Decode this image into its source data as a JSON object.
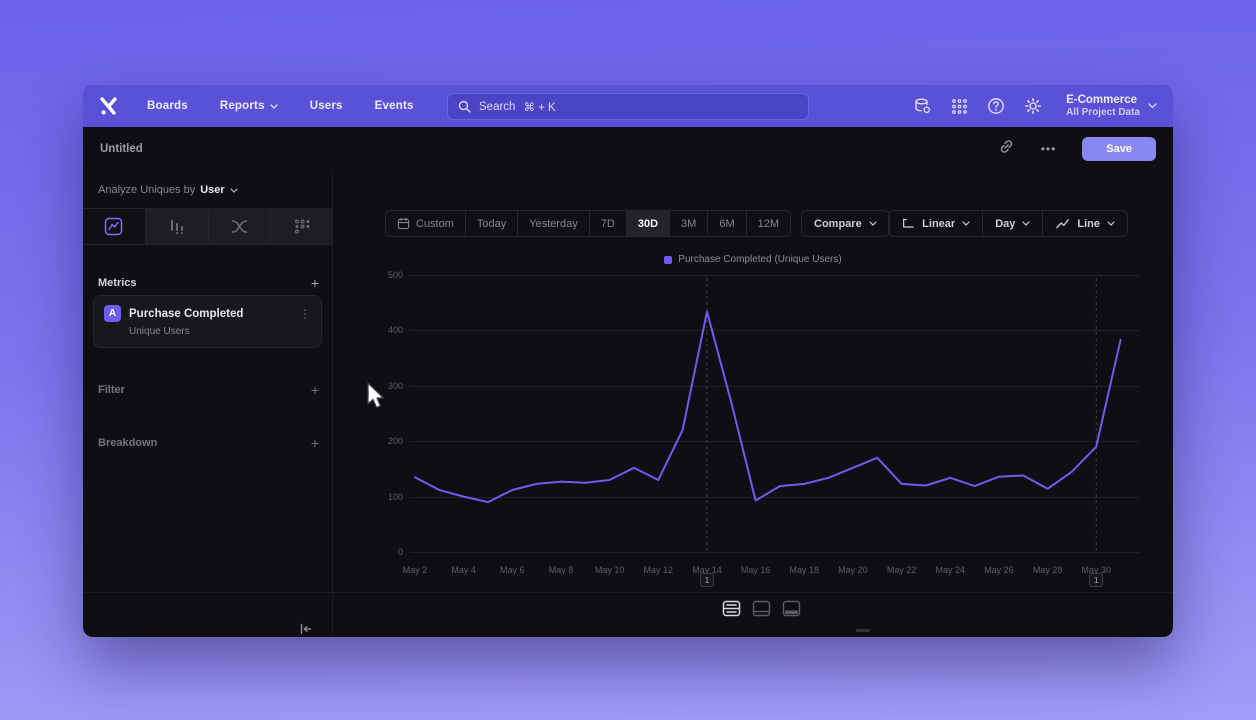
{
  "nav": {
    "items": [
      {
        "label": "Boards"
      },
      {
        "label": "Reports"
      },
      {
        "label": "Users"
      },
      {
        "label": "Events"
      }
    ],
    "search": {
      "label": "Search",
      "shortcut": "⌘ + K"
    },
    "project": {
      "name": "E-Commerce",
      "scope": "All Project Data"
    }
  },
  "titlebar": {
    "title": "Untitled",
    "more_label": "•••",
    "save_label": "Save"
  },
  "sidebar": {
    "analyze": {
      "prefix": "Analyze Uniques by",
      "value": "User"
    },
    "metrics": {
      "title": "Metrics",
      "add_label": "+"
    },
    "filter": {
      "title": "Filter",
      "add_label": "+"
    },
    "breakdown": {
      "title": "Breakdown",
      "add_label": "+"
    },
    "metric_card": {
      "badge": "A",
      "name": "Purchase Completed",
      "subtitle": "Unique Users",
      "menu": "⋮"
    }
  },
  "toolbar": {
    "ranges": [
      "Custom",
      "Today",
      "Yesterday",
      "7D",
      "30D",
      "3M",
      "6M",
      "12M"
    ],
    "active_range": "30D",
    "compare_label": "Compare",
    "scale_label": "Linear",
    "granularity_label": "Day",
    "chart_type_label": "Line"
  },
  "legend": {
    "label": "Purchase Completed (Unique Users)",
    "color": "#6f5bf0"
  },
  "chart_data": {
    "type": "line",
    "title": "",
    "categories": [
      "May 2",
      "May 3",
      "May 4",
      "May 5",
      "May 6",
      "May 7",
      "May 8",
      "May 9",
      "May 10",
      "May 11",
      "May 12",
      "May 13",
      "May 14",
      "May 15",
      "May 16",
      "May 17",
      "May 18",
      "May 19",
      "May 20",
      "May 21",
      "May 22",
      "May 23",
      "May 24",
      "May 25",
      "May 26",
      "May 27",
      "May 28",
      "May 29",
      "May 30",
      "May 31"
    ],
    "series": [
      {
        "name": "Purchase Completed (Unique Users)",
        "color": "#6f5bf0",
        "values": [
          135,
          112,
          100,
          90,
          112,
          123,
          127,
          125,
          130,
          152,
          130,
          220,
          434,
          270,
          93,
          119,
          123,
          134,
          152,
          170,
          123,
          120,
          134,
          119,
          136,
          138,
          114,
          145,
          190,
          383
        ]
      }
    ],
    "ylim": [
      0,
      500
    ],
    "yticks": [
      0,
      100,
      200,
      300,
      400,
      500
    ],
    "x_tick_every": 2,
    "grid": "horizontal",
    "legend_position": "top"
  },
  "annotations": [
    {
      "label": "1",
      "category": "May 14",
      "index": 12
    },
    {
      "label": "1",
      "category": "May 30",
      "index": 28
    }
  ]
}
